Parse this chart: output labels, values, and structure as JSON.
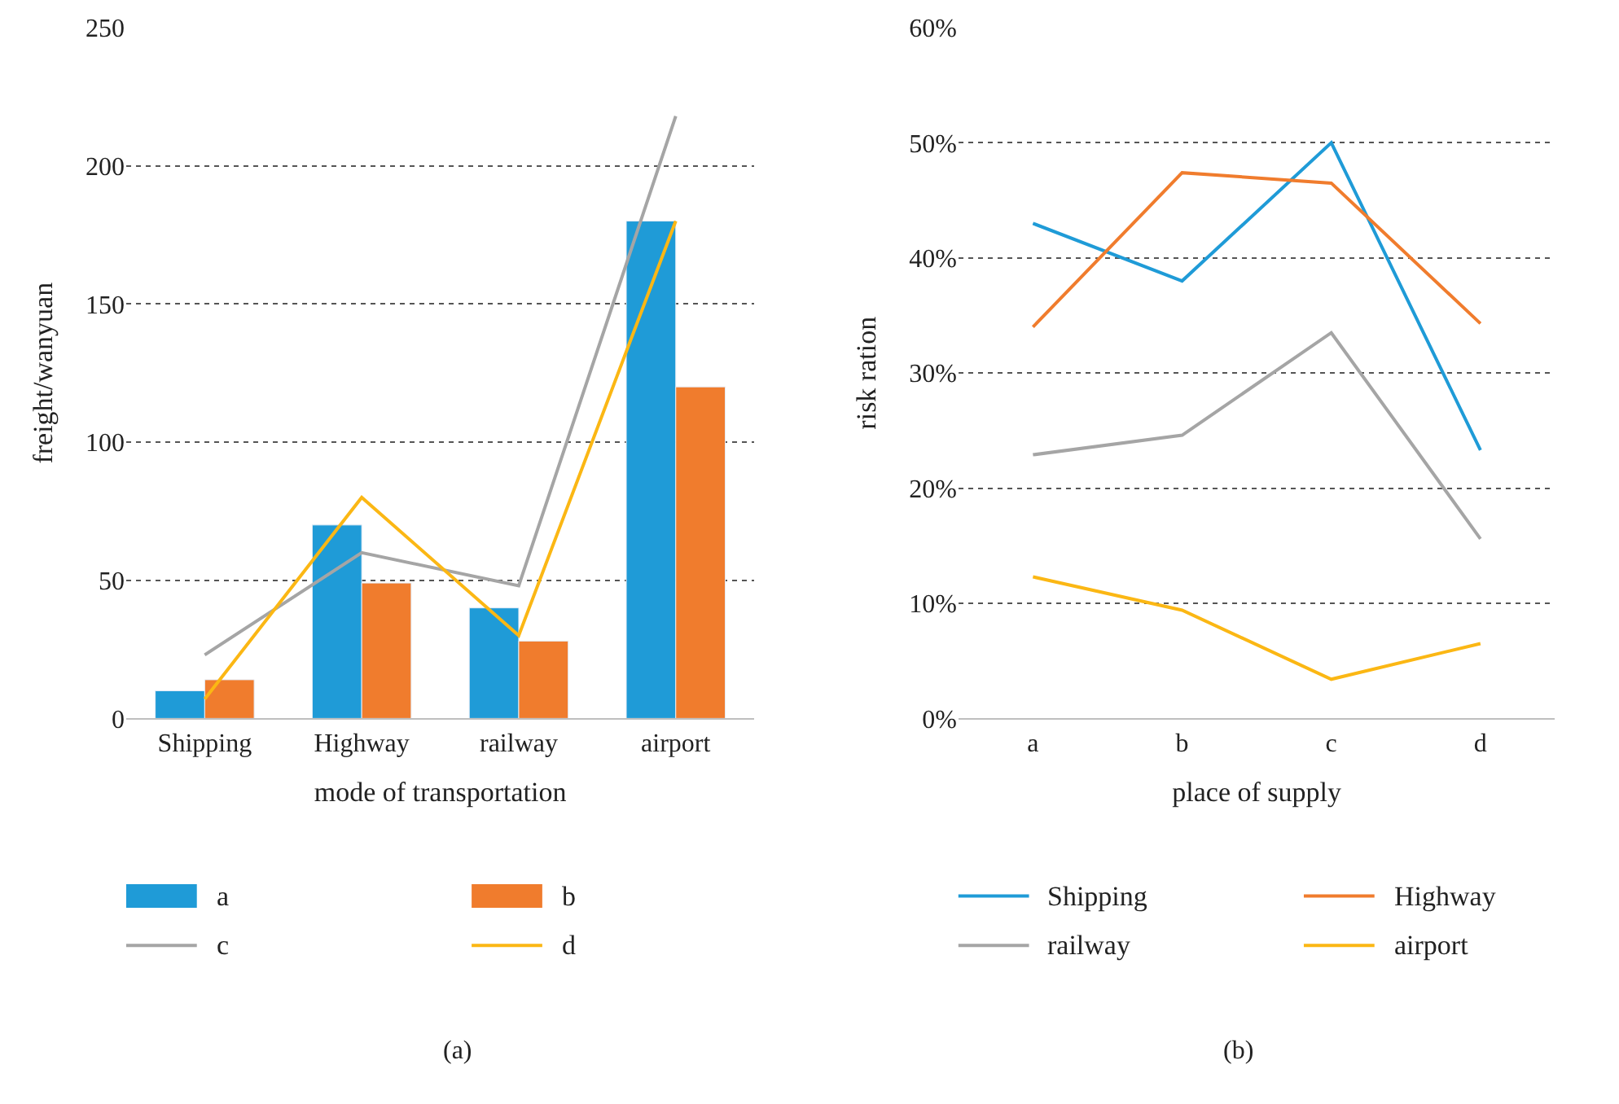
{
  "chart_data": [
    {
      "type": "bar",
      "xlabel": "mode of transportation",
      "ylabel": "freight/wanyuan",
      "categories": [
        "Shipping",
        "Highway",
        "railway",
        "airport"
      ],
      "series": [
        {
          "name": "a",
          "color": "#1f9bd7",
          "values": [
            10,
            70,
            40,
            180
          ]
        },
        {
          "name": "b",
          "color": "#f07c2d",
          "values": [
            14,
            49,
            28,
            120
          ]
        },
        {
          "name": "c",
          "type": "line",
          "color": "#a5a5a5",
          "values": [
            23,
            60,
            48,
            218
          ]
        },
        {
          "name": "d",
          "type": "line",
          "color": "#fbb714",
          "values": [
            7,
            80,
            30,
            180
          ]
        }
      ],
      "ylim": [
        0,
        250
      ],
      "yticks": [
        0,
        50,
        100,
        150,
        200,
        250
      ],
      "grid": "y",
      "legend": "bottom",
      "annotations": [
        "(a)"
      ]
    },
    {
      "type": "line",
      "xlabel": "place of supply",
      "ylabel": "risk ration",
      "categories": [
        "a",
        "b",
        "c",
        "d"
      ],
      "series": [
        {
          "name": "Shipping",
          "color": "#1f9bd7",
          "values": [
            43,
            38,
            50,
            23.3
          ]
        },
        {
          "name": "Highway",
          "color": "#f07c2d",
          "values": [
            34,
            47.4,
            46.5,
            34.3
          ]
        },
        {
          "name": "railway",
          "color": "#a5a5a5",
          "values": [
            22.9,
            24.6,
            33.5,
            15.6
          ]
        },
        {
          "name": "airport",
          "color": "#fbb714",
          "values": [
            12.3,
            9.4,
            3.4,
            6.5
          ]
        }
      ],
      "ylim": [
        0,
        60
      ],
      "yticks": [
        {
          "value": 0,
          "label": "0%"
        },
        {
          "value": 10,
          "label": "10%"
        },
        {
          "value": 20,
          "label": "20%"
        },
        {
          "value": 30,
          "label": "30%"
        },
        {
          "value": 40,
          "label": "40%"
        },
        {
          "value": 50,
          "label": "50%"
        },
        {
          "value": 60,
          "label": "60%"
        }
      ],
      "grid": "y",
      "legend": "bottom",
      "annotations": [
        "(b)"
      ]
    }
  ]
}
